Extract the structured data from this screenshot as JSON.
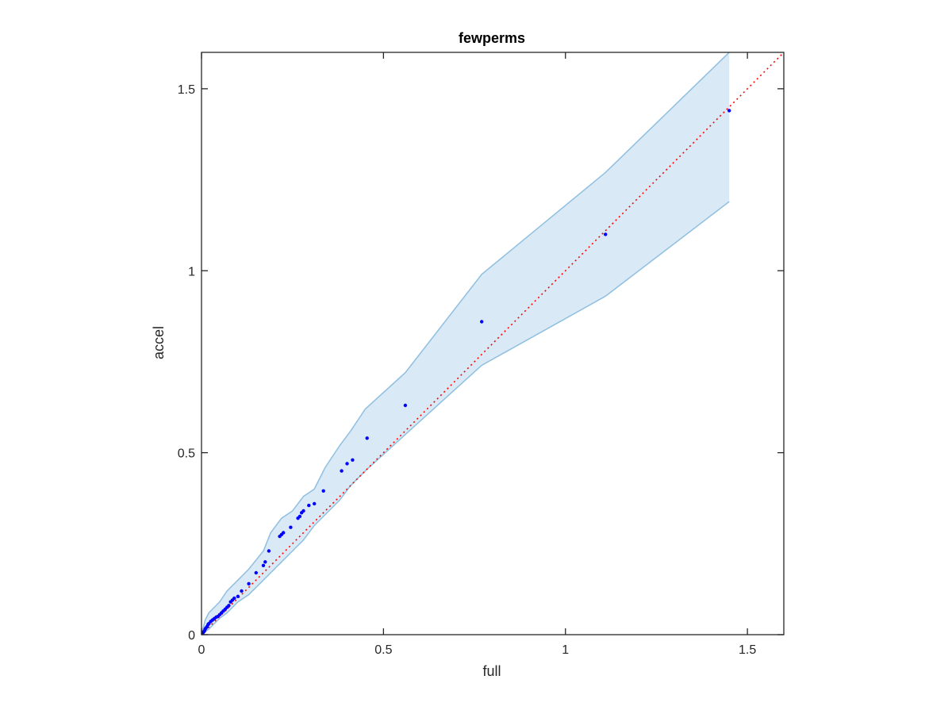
{
  "chart_data": {
    "type": "scatter",
    "title": "fewperms",
    "xlabel": "full",
    "ylabel": "accel",
    "xlim": [
      0,
      1.6
    ],
    "ylim": [
      0,
      1.6
    ],
    "xticks": [
      0,
      0.5,
      1,
      1.5
    ],
    "yticks": [
      0,
      0.5,
      1,
      1.5
    ],
    "xtick_labels": [
      "0",
      "0.5",
      "1",
      "1.5"
    ],
    "ytick_labels": [
      "0",
      "0.5",
      "1",
      "1.5"
    ],
    "grid": false,
    "colors": {
      "points": "#0000ff",
      "reference_line": "#ff0000",
      "band_fill": "#d9e9f5",
      "band_edge": "#8fbfe0",
      "axes": "#262626"
    },
    "reference_line": {
      "style": "dotted",
      "x": [
        0,
        1.6
      ],
      "y": [
        0,
        1.6
      ]
    },
    "band": {
      "x": [
        0,
        0.005,
        0.01,
        0.02,
        0.03,
        0.05,
        0.07,
        0.1,
        0.13,
        0.17,
        0.19,
        0.22,
        0.25,
        0.28,
        0.31,
        0.34,
        0.38,
        0.41,
        0.45,
        0.56,
        0.77,
        1.11,
        1.45
      ],
      "upper": [
        0,
        0.02,
        0.04,
        0.06,
        0.07,
        0.09,
        0.12,
        0.15,
        0.18,
        0.23,
        0.28,
        0.32,
        0.34,
        0.38,
        0.4,
        0.46,
        0.52,
        0.56,
        0.62,
        0.72,
        0.99,
        1.27,
        1.6
      ],
      "lower": [
        0,
        0.002,
        0.008,
        0.015,
        0.025,
        0.045,
        0.06,
        0.09,
        0.11,
        0.15,
        0.17,
        0.2,
        0.23,
        0.26,
        0.3,
        0.33,
        0.37,
        0.41,
        0.45,
        0.55,
        0.74,
        0.93,
        1.19
      ]
    },
    "series": [
      {
        "x": [
          0.002,
          0.004,
          0.006,
          0.008,
          0.01,
          0.012,
          0.015,
          0.018,
          0.02,
          0.025,
          0.03,
          0.035,
          0.04,
          0.045,
          0.05,
          0.055,
          0.06,
          0.065,
          0.07,
          0.075,
          0.08,
          0.085,
          0.09,
          0.1,
          0.11,
          0.13,
          0.15,
          0.17,
          0.175,
          0.185,
          0.215,
          0.22,
          0.225,
          0.245,
          0.265,
          0.27,
          0.275,
          0.28,
          0.295,
          0.31,
          0.335,
          0.385,
          0.4,
          0.415,
          0.455,
          0.56,
          0.77,
          1.11,
          1.45
        ],
        "y": [
          0.002,
          0.005,
          0.008,
          0.01,
          0.015,
          0.018,
          0.022,
          0.028,
          0.03,
          0.036,
          0.04,
          0.044,
          0.048,
          0.05,
          0.055,
          0.06,
          0.065,
          0.07,
          0.075,
          0.08,
          0.09,
          0.095,
          0.1,
          0.105,
          0.12,
          0.14,
          0.17,
          0.19,
          0.2,
          0.23,
          0.27,
          0.275,
          0.28,
          0.295,
          0.32,
          0.325,
          0.335,
          0.34,
          0.355,
          0.36,
          0.395,
          0.45,
          0.47,
          0.48,
          0.54,
          0.63,
          0.86,
          1.1,
          1.44
        ]
      }
    ]
  }
}
